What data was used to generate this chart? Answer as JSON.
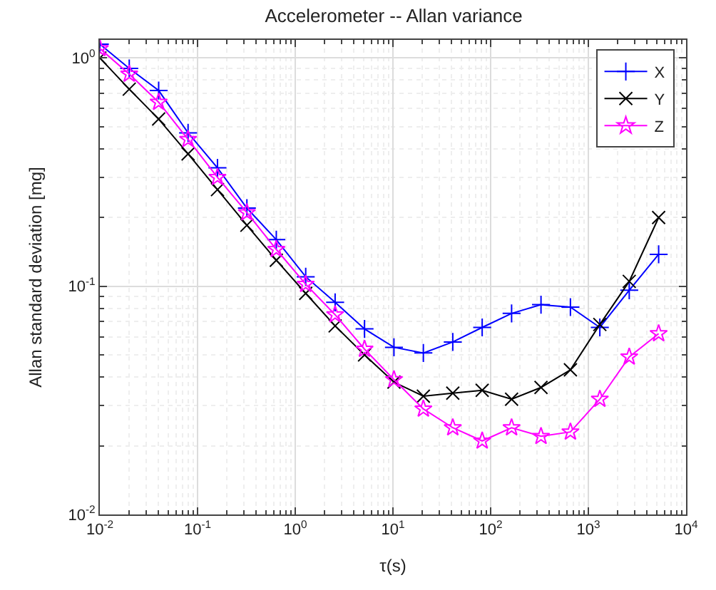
{
  "chart_data": {
    "type": "line",
    "title": "Accelerometer -- Allan variance",
    "xlabel": "τ(s)",
    "ylabel": "Allan standard deviation [mg]",
    "log": "xy",
    "grid": true,
    "legend": "top right",
    "line_style": "solid",
    "x": [
      0.01,
      0.02,
      0.04,
      0.08,
      0.16,
      0.32,
      0.64,
      1.28,
      2.56,
      5.12,
      10.24,
      20.48,
      40.96,
      81.92,
      163.84,
      327.68,
      655.36,
      1310.72,
      2621.44,
      5242.88
    ],
    "xlim": [
      0.01,
      10000
    ],
    "ylim": [
      0.01,
      1.2
    ],
    "xticks": [
      {
        "value": 0.01,
        "label": "10$^{-2}$"
      },
      {
        "value": 0.1,
        "label": "10$^{-1}$"
      },
      {
        "value": 1,
        "label": "10$^{0}$"
      },
      {
        "value": 10,
        "label": "10$^{1}$"
      },
      {
        "value": 100,
        "label": "10$^{2}$"
      },
      {
        "value": 1000,
        "label": "10$^{3}$"
      },
      {
        "value": 10000,
        "label": "10$^{4}$"
      }
    ],
    "yticks": [
      {
        "value": 0.01,
        "label": "10$^{-2}$"
      },
      {
        "value": 0.1,
        "label": "10$^{-1}$"
      },
      {
        "value": 1,
        "label": "10$^{0}$"
      }
    ],
    "series": [
      {
        "name": "X",
        "color": "#0000ff",
        "marker": "cross",
        "values": [
          1.15,
          0.9,
          0.72,
          0.47,
          0.33,
          0.22,
          0.16,
          0.11,
          0.085,
          0.065,
          0.054,
          0.051,
          0.057,
          0.066,
          0.076,
          0.083,
          0.081,
          0.066,
          0.096,
          0.138
        ]
      },
      {
        "name": "Y",
        "color": "#000000",
        "marker": "x",
        "values": [
          1.0,
          0.73,
          0.54,
          0.38,
          0.265,
          0.185,
          0.13,
          0.093,
          0.067,
          0.05,
          0.038,
          0.033,
          0.034,
          0.035,
          0.032,
          0.036,
          0.043,
          0.068,
          0.105,
          0.2
        ]
      },
      {
        "name": "Z",
        "color": "#ff00ff",
        "marker": "star",
        "values": [
          1.1,
          0.85,
          0.64,
          0.44,
          0.3,
          0.21,
          0.145,
          0.102,
          0.075,
          0.053,
          0.039,
          0.029,
          0.024,
          0.021,
          0.024,
          0.022,
          0.023,
          0.032,
          0.049,
          0.062
        ]
      }
    ]
  }
}
